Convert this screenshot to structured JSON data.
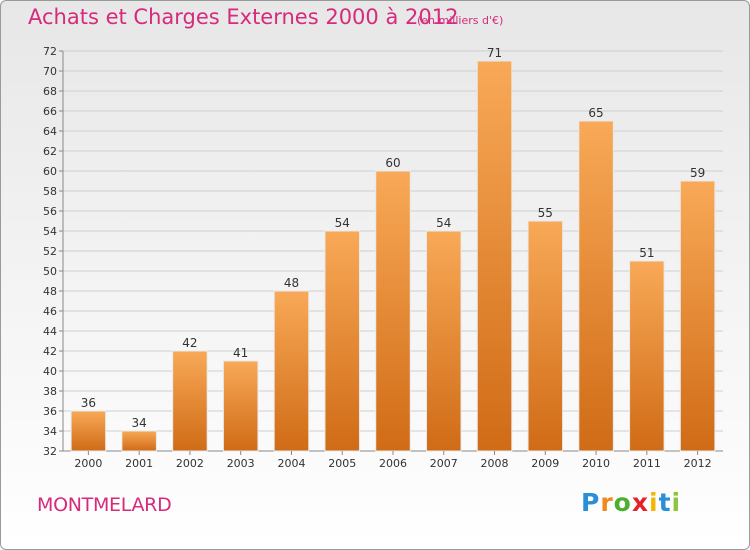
{
  "header": {
    "title": "Achats et Charges Externes 2000 à 2012",
    "unit": "(en milliers d'€)"
  },
  "footer": {
    "town": "MONTMELARD",
    "logo_letters": [
      "P",
      "r",
      "o",
      "x",
      "i",
      "t",
      "i"
    ],
    "logo_colors": [
      "#2b8fd6",
      "#f08a1d",
      "#4caf32",
      "#e2232b",
      "#f2b705",
      "#2b8fd6",
      "#8cc63f"
    ]
  },
  "colors": {
    "title": "#d62a7c",
    "bar_light": "#f8a957",
    "bar_dark": "#d06b16",
    "grid": "#cfcfcf",
    "axis_text": "#333333"
  },
  "chart_data": {
    "type": "bar",
    "categories": [
      "2000",
      "2001",
      "2002",
      "2003",
      "2004",
      "2005",
      "2006",
      "2007",
      "2008",
      "2009",
      "2010",
      "2011",
      "2012"
    ],
    "values": [
      36,
      34,
      42,
      41,
      48,
      54,
      60,
      54,
      71,
      55,
      65,
      51,
      59
    ],
    "title": "Achats et Charges Externes 2000 à 2012",
    "subtitle": "(en milliers d'€)",
    "ylim": [
      32,
      72
    ],
    "ytick_step": 2,
    "grid": true
  }
}
